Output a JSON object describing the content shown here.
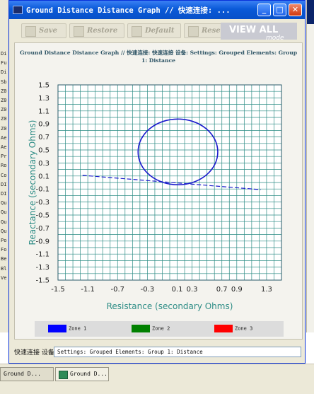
{
  "window": {
    "title": "Ground Distance Distance Graph // 快速连接: ..."
  },
  "toolbar": {
    "save": "Save",
    "restore": "Restore",
    "default": "Default",
    "reset": "Reset",
    "view_all": "VIEW ALL",
    "view_all_mode": "mode"
  },
  "background": {
    "left_rows": [
      "Di",
      "Fu",
      "Di",
      "Sb",
      "Z0",
      "Z0",
      "Z0",
      "Z0",
      "Z0",
      "Ae",
      "Ae",
      "Pr",
      "Ro",
      "Co",
      "DI",
      "DI",
      "Qu",
      "Qu",
      "Qu",
      "Qu",
      "Po",
      "Fo",
      "Be",
      "Bl",
      "Ve"
    ]
  },
  "chart_data": {
    "type": "line",
    "title": "Ground Distance Distance Graph // 快速连接: 快速连接 设备: Settings: Grouped Elements: Group 1: Distance",
    "xlabel": "Resistance (secondary Ohms)",
    "ylabel": "Reactance (secondary Ohms)",
    "xlim": [
      -1.5,
      1.5
    ],
    "ylim": [
      -1.5,
      1.5
    ],
    "x_ticks": [
      -1.5,
      -1.1,
      -0.7,
      -0.3,
      0.1,
      0.3,
      0.7,
      0.9,
      1.3
    ],
    "x_tick_labels": [
      "-1.5",
      "-1.1",
      "-0.7",
      "-0.3",
      "0.1",
      "0.3",
      "0.7",
      "0.9",
      "1.3"
    ],
    "y_ticks": [
      1.5,
      1.3,
      1.1,
      0.9,
      0.7,
      0.5,
      0.3,
      0.1,
      -0.1,
      -0.3,
      -0.5,
      -0.7,
      -0.9,
      -1.1,
      -1.3,
      -1.5
    ],
    "y_tick_labels": [
      "1.5",
      "1.3",
      "1.1",
      "0.9",
      "0.7",
      "0.5",
      "0.3",
      "0.1",
      "-0.1",
      "-0.3",
      "-0.5",
      "-0.7",
      "-0.9",
      "-1.1",
      "-1.3",
      "-1.5"
    ],
    "grid": true,
    "grid_step": 0.1,
    "series": [
      {
        "name": "Zone 1",
        "color": "#1a1acc",
        "shape": "circle",
        "center": [
          0.11,
          0.47
        ],
        "radius": 0.5
      },
      {
        "name": "Zone 1",
        "color": "#1a1acc",
        "shape": "dashed-line",
        "x": [
          -1.17,
          1.22
        ],
        "y": [
          0.11,
          -0.11
        ]
      }
    ],
    "legend": {
      "placement": "bottom",
      "items": [
        {
          "name": "Zone 1",
          "color": "#0000ff"
        },
        {
          "name": "Zone 2",
          "color": "#008000"
        },
        {
          "name": "Zone 3",
          "color": "#ff0000"
        }
      ]
    }
  },
  "statusbar": {
    "label": "快速连接 设备",
    "text": "Settings: Grouped Elements: Group 1: Distance"
  },
  "taskbar": {
    "items": [
      "Ground D...",
      "Ground D..."
    ]
  }
}
